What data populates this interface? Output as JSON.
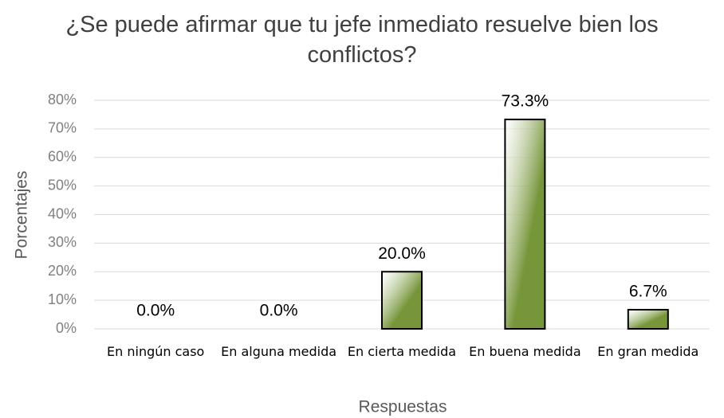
{
  "chart_data": {
    "type": "bar",
    "title": "¿Se puede afirmar que tu jefe inmediato resuelve bien los conflictos?",
    "x_label": "Respuestas",
    "y_label": "Porcentajes",
    "categories": [
      "En ningún caso",
      "En alguna medida",
      "En cierta medida",
      "En buena medida",
      "En gran medida"
    ],
    "values": [
      0,
      0,
      20,
      73.3,
      6.7
    ],
    "value_labels": [
      "0.0%",
      "0.0%",
      "20.0%",
      "73.3%",
      "6.7%"
    ],
    "color": "#77963a",
    "ylim": [
      0,
      80
    ],
    "yticks": [
      {
        "value": 0,
        "label": "0%"
      },
      {
        "value": 10,
        "label": "10%"
      },
      {
        "value": 20,
        "label": "20%"
      },
      {
        "value": 30,
        "label": "30%"
      },
      {
        "value": 40,
        "label": "40%"
      },
      {
        "value": 50,
        "label": "50%"
      },
      {
        "value": 60,
        "label": "60%"
      },
      {
        "value": 70,
        "label": "70%"
      },
      {
        "value": 80,
        "label": "80%"
      }
    ],
    "grid": true
  }
}
